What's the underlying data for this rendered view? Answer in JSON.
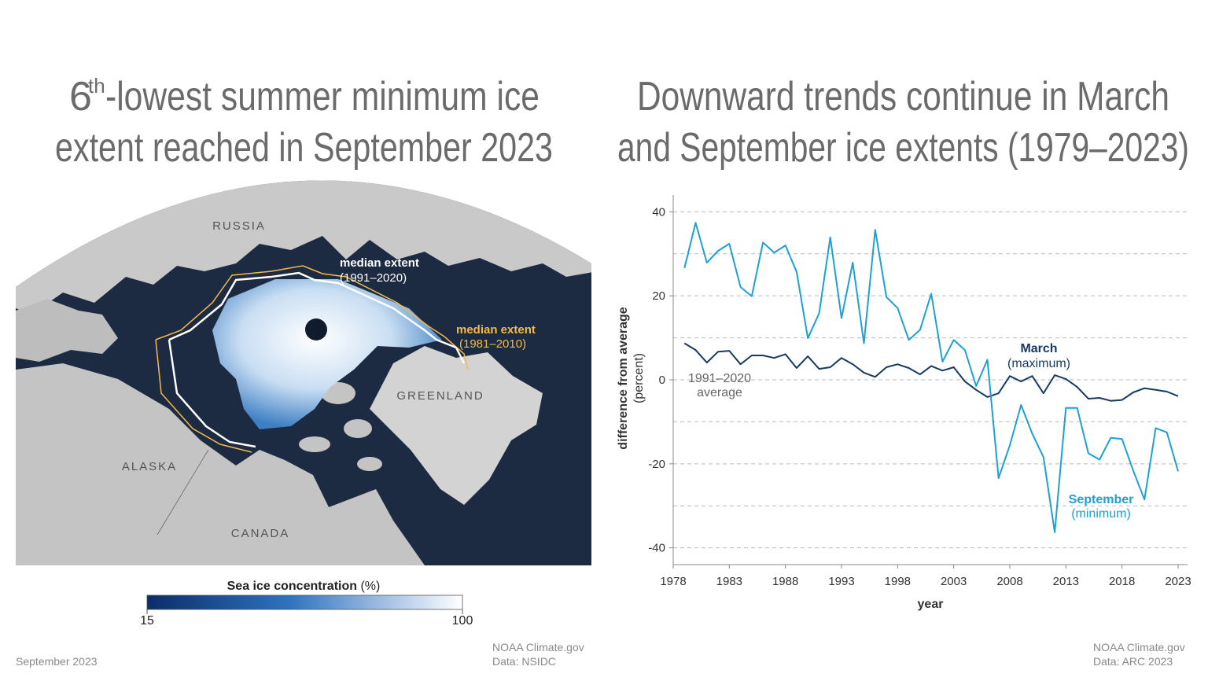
{
  "map": {
    "title": {
      "ordinal": "6",
      "suffix": "th",
      "lines": [
        "-lowest summer minimum ice",
        "extent reached in September 2023"
      ]
    },
    "labels": [
      "RUSSIA",
      "GREENLAND",
      "ALASKA",
      "CANADA"
    ],
    "median_1991_2020": {
      "text": "median extent",
      "period": "(1991–2020)",
      "color": "#ffffff"
    },
    "median_1981_2010": {
      "text": "median extent",
      "period": "(1981–2010)",
      "color": "#f5b94a"
    },
    "colorbar": {
      "label": "Sea ice concentration",
      "unit": "(%)",
      "range": [
        15,
        100
      ],
      "ticks": [
        15,
        100
      ],
      "colors": [
        "#0b2d68",
        "#ffffff"
      ]
    },
    "date": "September 2023",
    "credit": "NOAA Climate.gov",
    "source": "Data: NSIDC"
  },
  "chart_data": {
    "type": "line",
    "title": [
      "Downward trends continue in March",
      "and September ice extents (1979–2023)"
    ],
    "x_label": "year",
    "y_label": [
      "difference from average",
      "(percent)"
    ],
    "x": [
      1979,
      1980,
      1981,
      1982,
      1983,
      1984,
      1985,
      1986,
      1987,
      1988,
      1989,
      1990,
      1991,
      1992,
      1993,
      1994,
      1995,
      1996,
      1997,
      1998,
      1999,
      2000,
      2001,
      2002,
      2003,
      2004,
      2005,
      2006,
      2007,
      2008,
      2009,
      2010,
      2011,
      2012,
      2013,
      2014,
      2015,
      2016,
      2017,
      2018,
      2019,
      2020,
      2021,
      2022,
      2023
    ],
    "series": [
      {
        "name": "March",
        "color": "#173a63",
        "values": [
          8.7,
          7.1,
          4.1,
          6.7,
          6.9,
          3.7,
          5.8,
          5.8,
          5.2,
          6.1,
          2.8,
          5.6,
          2.6,
          3.0,
          5.2,
          3.7,
          1.7,
          0.7,
          3.0,
          3.7,
          2.8,
          1.3,
          3.3,
          2.2,
          3.0,
          -0.4,
          -2.4,
          -4.1,
          -3.2,
          0.9,
          -0.4,
          0.9,
          -3.2,
          1.1,
          0.2,
          -1.7,
          -4.5,
          -4.3,
          -5.0,
          -4.8,
          -3.0,
          -2.0,
          -2.4,
          -2.8,
          -3.9
        ]
      },
      {
        "name": "September",
        "color": "#1fa0d2",
        "values": [
          26.6,
          37.4,
          27.9,
          30.7,
          32.4,
          22.1,
          19.9,
          32.7,
          30.3,
          32.0,
          25.7,
          9.9,
          15.8,
          33.9,
          14.7,
          27.9,
          8.7,
          35.7,
          19.7,
          17.1,
          9.5,
          11.9,
          20.5,
          4.3,
          9.5,
          7.1,
          -1.5,
          4.8,
          -23.4,
          -15.6,
          -6.0,
          -12.8,
          -18.4,
          -36.3,
          -6.7,
          -6.7,
          -17.5,
          -19.0,
          -13.8,
          -14.1,
          -21.6,
          -28.5,
          -11.5,
          -12.5,
          -21.8
        ]
      }
    ],
    "annotations": [
      "(maximum)",
      "(minimum)",
      "1991–2020",
      "average"
    ],
    "xlim": [
      1978,
      2023
    ],
    "xticks": [
      1978,
      1983,
      1988,
      1993,
      1998,
      2003,
      2008,
      2013,
      2018,
      2023
    ],
    "ylim": [
      -44,
      44
    ],
    "yticks": [
      -40,
      -20,
      0,
      20,
      40
    ],
    "ygrid": [
      -40,
      -30,
      -20,
      -10,
      0,
      10,
      20,
      30,
      40
    ],
    "grid": true,
    "credit": "NOAA Climate.gov",
    "source": "Data: ARC 2023"
  }
}
